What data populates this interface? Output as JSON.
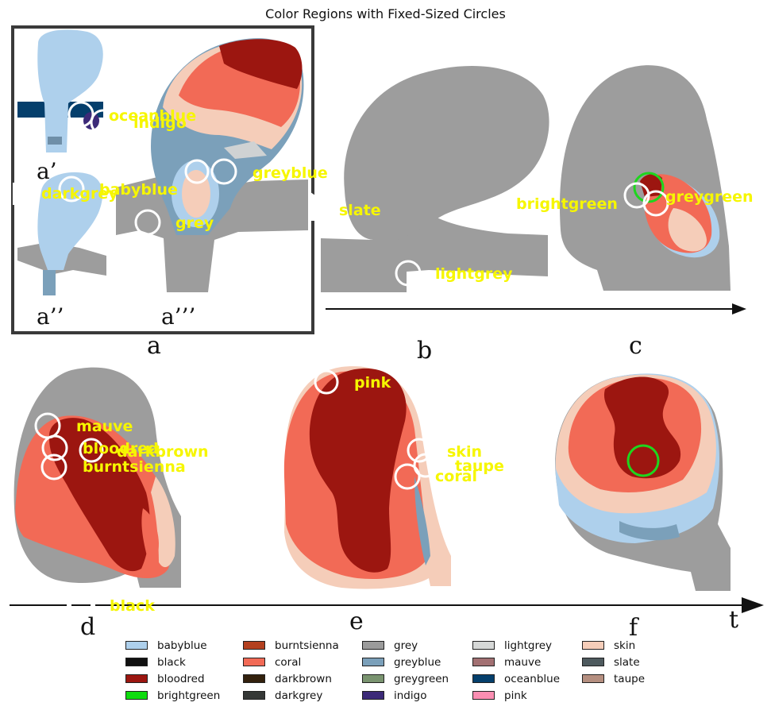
{
  "title": "Color Regions with Fixed-Sized Circles",
  "panels": {
    "a": "a",
    "b": "b",
    "c": "c",
    "d": "d",
    "e": "e",
    "f": "f",
    "a1": "a’",
    "a2": "a’’",
    "a3": "a’’’",
    "t": "t"
  },
  "region_labels": {
    "oceanblue": "oceanblue",
    "indigo": "indigo",
    "darkgrey": "darkgrey",
    "babyblue": "babyblue",
    "greyblue": "greyblue",
    "grey": "grey",
    "slate": "slate",
    "lightgrey": "lightgrey",
    "brightgreen": "brightgreen",
    "greygreen": "greygreen",
    "mauve": "mauve",
    "bloodred": "bloodred",
    "darkbrown": "darkbrown",
    "burntsienna": "burntsienna",
    "black": "black",
    "pink": "pink",
    "skin": "skin",
    "taupe": "taupe",
    "coral": "coral"
  },
  "colors": {
    "tissue_grey": "#9d9d9d",
    "babyblue": "#aed0ec",
    "bloodred": "#9c1610",
    "coral": "#f26a56",
    "skin": "#f5cdb9",
    "greyblue": "#7ba0ba",
    "oceanblue": "#053f6c",
    "indigo": "#3c2a78",
    "circle_white": "#ffffff",
    "circle_green": "#1ed61e",
    "label_yellow": "#f6f600"
  },
  "legend": [
    {
      "label": "babyblue",
      "color": "#aed0ec"
    },
    {
      "label": "black",
      "color": "#111111"
    },
    {
      "label": "bloodred",
      "color": "#9c1610"
    },
    {
      "label": "brightgreen",
      "color": "#0fdc0f"
    },
    {
      "label": "burntsienna",
      "color": "#b3401f"
    },
    {
      "label": "coral",
      "color": "#f26a56"
    },
    {
      "label": "darkbrown",
      "color": "#33210d"
    },
    {
      "label": "darkgrey",
      "color": "#353836"
    },
    {
      "label": "grey",
      "color": "#9b9b9b"
    },
    {
      "label": "greyblue",
      "color": "#7ba0ba"
    },
    {
      "label": "greygreen",
      "color": "#7a9470"
    },
    {
      "label": "indigo",
      "color": "#3c2a78"
    },
    {
      "label": "lightgrey",
      "color": "#d6d8d7"
    },
    {
      "label": "mauve",
      "color": "#a27072"
    },
    {
      "label": "oceanblue",
      "color": "#053f6c"
    },
    {
      "label": "pink",
      "color": "#fb8eb2"
    },
    {
      "label": "skin",
      "color": "#f5cdb9"
    },
    {
      "label": "slate",
      "color": "#4e5a5e"
    },
    {
      "label": "taupe",
      "color": "#b58f80"
    }
  ]
}
